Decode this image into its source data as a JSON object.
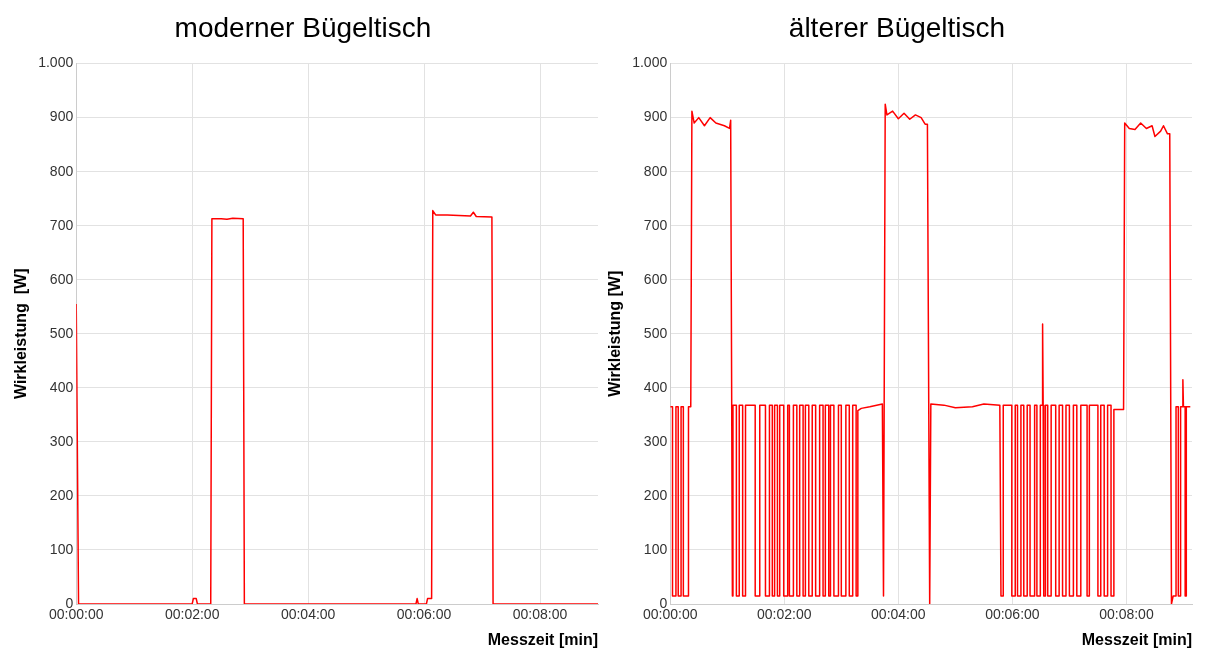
{
  "chart_data": [
    {
      "type": "line",
      "title": "moderner Bügeltisch",
      "xlabel": "Messzeit [min]",
      "ylabel": "Wirkleistung  [W]",
      "color": "#ff0000",
      "grid": true,
      "xlim": [
        0,
        9
      ],
      "xticks": [
        {
          "value": 0,
          "label": "00:00:00"
        },
        {
          "value": 2,
          "label": "00:02:00"
        },
        {
          "value": 4,
          "label": "00:04:00"
        },
        {
          "value": 6,
          "label": "00:06:00"
        },
        {
          "value": 8,
          "label": "00:08:00"
        }
      ],
      "ylim": [
        0,
        1000
      ],
      "yticks": [
        0,
        100,
        200,
        300,
        400,
        500,
        600,
        700,
        800,
        900,
        {
          "value": 1000,
          "label": "1.000"
        }
      ],
      "x": [
        0,
        0.04,
        2.0,
        2.02,
        2.07,
        2.09,
        2.32,
        2.34,
        2.5,
        2.6,
        2.7,
        2.88,
        2.9,
        5.86,
        5.88,
        5.9,
        6.04,
        6.06,
        6.13,
        6.15,
        6.2,
        6.4,
        6.6,
        6.8,
        6.85,
        6.9,
        7.17,
        7.19,
        9.0
      ],
      "values": [
        555,
        0,
        0,
        10,
        10,
        0,
        0,
        713,
        713,
        712,
        714,
        713,
        0,
        0,
        10,
        0,
        0,
        10,
        10,
        728,
        720,
        720,
        719,
        718,
        725,
        717,
        716,
        0,
        0
      ]
    },
    {
      "type": "line",
      "title": "älterer Bügeltisch",
      "xlabel": "Messzeit [min]",
      "ylabel": "Wirkleistung [W]",
      "color": "#ff0000",
      "grid": true,
      "xlim": [
        0,
        9.15
      ],
      "xticks": [
        {
          "value": 0,
          "label": "00:00:00"
        },
        {
          "value": 2,
          "label": "00:02:00"
        },
        {
          "value": 4,
          "label": "00:04:00"
        },
        {
          "value": 6,
          "label": "00:06:00"
        },
        {
          "value": 8,
          "label": "00:08:00"
        }
      ],
      "ylim": [
        0,
        1000
      ],
      "yticks": [
        0,
        100,
        200,
        300,
        400,
        500,
        600,
        700,
        800,
        900,
        {
          "value": 1000,
          "label": "1.000"
        }
      ],
      "x": [
        0,
        0.04,
        0.04,
        0.1,
        0.1,
        0.14,
        0.14,
        0.19,
        0.19,
        0.23,
        0.23,
        0.32,
        0.32,
        0.36,
        0.38,
        0.42,
        0.5,
        0.6,
        0.7,
        0.8,
        0.95,
        1.04,
        1.06,
        1.09,
        1.1,
        1.1,
        1.16,
        1.16,
        1.21,
        1.21,
        1.27,
        1.27,
        1.32,
        1.32,
        1.49,
        1.49,
        1.57,
        1.57,
        1.67,
        1.67,
        1.74,
        1.74,
        1.79,
        1.79,
        1.83,
        1.83,
        1.88,
        1.88,
        1.92,
        1.92,
        1.99,
        1.99,
        2.06,
        2.06,
        2.09,
        2.09,
        2.16,
        2.16,
        2.22,
        2.22,
        2.27,
        2.27,
        2.33,
        2.33,
        2.37,
        2.37,
        2.43,
        2.43,
        2.49,
        2.49,
        2.55,
        2.55,
        2.62,
        2.62,
        2.68,
        2.68,
        2.72,
        2.72,
        2.78,
        2.78,
        2.81,
        2.81,
        2.87,
        2.87,
        2.95,
        2.95,
        3.0,
        3.0,
        3.08,
        3.08,
        3.14,
        3.14,
        3.2,
        3.2,
        3.26,
        3.26,
        3.29,
        3.29,
        3.35,
        3.5,
        3.72,
        3.74,
        3.77,
        3.8,
        3.9,
        4.0,
        4.1,
        4.2,
        4.3,
        4.4,
        4.47,
        4.51,
        4.55,
        4.57,
        4.8,
        5.0,
        5.3,
        5.5,
        5.78,
        5.8,
        5.84,
        5.84,
        5.99,
        5.99,
        6.05,
        6.05,
        6.09,
        6.09,
        6.15,
        6.15,
        6.2,
        6.2,
        6.26,
        6.26,
        6.31,
        6.31,
        6.39,
        6.39,
        6.43,
        6.43,
        6.49,
        6.49,
        6.52,
        6.53,
        6.54,
        6.55,
        6.55,
        6.58,
        6.58,
        6.62,
        6.62,
        6.68,
        6.68,
        6.76,
        6.76,
        6.82,
        6.82,
        6.88,
        6.88,
        6.94,
        6.94,
        7.0,
        7.0,
        7.07,
        7.07,
        7.13,
        7.13,
        7.2,
        7.2,
        7.31,
        7.31,
        7.35,
        7.35,
        7.5,
        7.5,
        7.55,
        7.55,
        7.61,
        7.61,
        7.67,
        7.67,
        7.73,
        7.73,
        7.78,
        7.78,
        7.95,
        7.97,
        8.05,
        8.15,
        8.25,
        8.35,
        8.45,
        8.5,
        8.6,
        8.65,
        8.72,
        8.76,
        8.79,
        8.82,
        8.87,
        8.87,
        8.91,
        8.91,
        8.95,
        8.95,
        8.98,
        8.99,
        9.0,
        9.03,
        9.03,
        9.05,
        9.05,
        9.12
      ],
      "values": [
        365,
        365,
        15,
        15,
        365,
        365,
        15,
        15,
        365,
        365,
        15,
        15,
        365,
        365,
        912,
        890,
        900,
        885,
        900,
        890,
        885,
        880,
        895,
        15,
        15,
        368,
        368,
        15,
        15,
        368,
        368,
        15,
        15,
        368,
        368,
        15,
        15,
        368,
        368,
        15,
        15,
        368,
        368,
        15,
        15,
        368,
        368,
        15,
        15,
        368,
        368,
        15,
        15,
        368,
        368,
        15,
        15,
        368,
        368,
        15,
        15,
        368,
        368,
        15,
        15,
        368,
        368,
        15,
        15,
        368,
        368,
        15,
        15,
        368,
        368,
        15,
        15,
        368,
        368,
        15,
        15,
        368,
        368,
        15,
        15,
        368,
        368,
        15,
        15,
        368,
        368,
        15,
        15,
        368,
        368,
        15,
        15,
        358,
        362,
        365,
        370,
        15,
        925,
        905,
        912,
        898,
        908,
        897,
        905,
        900,
        888,
        888,
        0,
        370,
        368,
        363,
        365,
        370,
        368,
        15,
        15,
        368,
        368,
        15,
        15,
        368,
        368,
        15,
        15,
        368,
        368,
        15,
        15,
        368,
        368,
        15,
        15,
        368,
        368,
        15,
        15,
        368,
        368,
        518,
        368,
        368,
        15,
        15,
        368,
        368,
        15,
        15,
        368,
        368,
        15,
        15,
        368,
        368,
        15,
        15,
        368,
        368,
        15,
        15,
        368,
        368,
        15,
        15,
        368,
        368,
        15,
        15,
        368,
        368,
        15,
        15,
        368,
        368,
        15,
        15,
        368,
        368,
        15,
        15,
        360,
        360,
        890,
        880,
        878,
        890,
        880,
        885,
        865,
        875,
        885,
        870,
        870,
        0,
        15,
        15,
        365,
        365,
        15,
        15,
        365,
        365,
        415,
        365,
        365,
        15,
        15,
        365,
        365
      ]
    }
  ]
}
